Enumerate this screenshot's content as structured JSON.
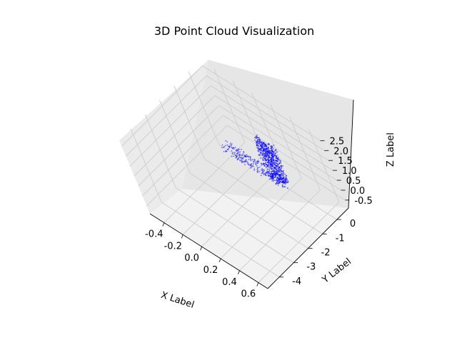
{
  "chart_data": {
    "type": "scatter",
    "title": "3D Point Cloud Visualization",
    "xlabel": "X Label",
    "ylabel": "Y Label",
    "zlabel": "Z Label",
    "xlim": [
      -0.55,
      0.7
    ],
    "ylim": [
      -4.8,
      0.8
    ],
    "zlim": [
      -0.9,
      2.8
    ],
    "x_ticks": [
      "-0.4",
      "-0.2",
      "0.0",
      "0.2",
      "0.4",
      "0.6"
    ],
    "y_ticks": [
      "-4",
      "-3",
      "-2",
      "-1",
      "0"
    ],
    "z_ticks": [
      "-0.5",
      "0.0",
      "0.5",
      "1.0",
      "1.5",
      "2.0",
      "2.5"
    ],
    "grid": true,
    "series": [
      {
        "color": "#0000ff",
        "marker_size": 1,
        "points": {
          "wall_x_range": [
            0.05,
            0.25
          ],
          "wall_y_range": [
            -0.3,
            0.0
          ],
          "wall_z_range": [
            -0.6,
            1.5
          ],
          "floor_x_range": [
            -0.45,
            0.2
          ],
          "floor_y_range": [
            -0.4,
            0.1
          ],
          "floor_z": -0.5
        }
      }
    ]
  }
}
